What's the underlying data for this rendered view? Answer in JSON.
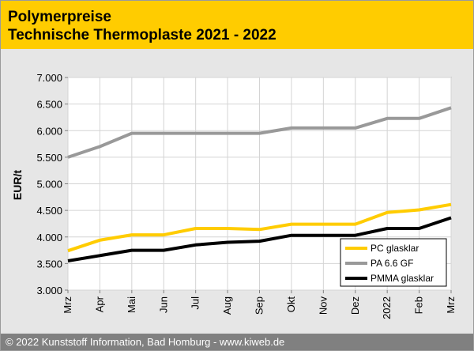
{
  "header": {
    "title": "Polymerpreise",
    "subtitle": "Technische Thermoplaste 2021 - 2022"
  },
  "footer": {
    "text": "© 2022 Kunststoff Information, Bad Homburg - www.kiweb.de"
  },
  "chart_data": {
    "type": "line",
    "ylabel": "EUR/t",
    "ylim": [
      3000,
      7000
    ],
    "yticks": [
      3000,
      3500,
      4000,
      4500,
      5000,
      5500,
      6000,
      6500,
      7000
    ],
    "ytick_labels": [
      "3.000",
      "3.500",
      "4.000",
      "4.500",
      "5.000",
      "5.500",
      "6.000",
      "6.500",
      "7.000"
    ],
    "categories": [
      "Mrz",
      "Apr",
      "Mai",
      "Jun",
      "Jul",
      "Aug",
      "Sep",
      "Okt",
      "Nov",
      "Dez",
      "2022",
      "Feb",
      "Mrz"
    ],
    "grid": true,
    "legend_position": "bottom-right",
    "series": [
      {
        "name": "PC glasklar",
        "color": "#ffcc00",
        "values": [
          3740,
          3940,
          4040,
          4040,
          4160,
          4160,
          4140,
          4240,
          4240,
          4240,
          4460,
          4510,
          4610
        ]
      },
      {
        "name": "PA 6.6 GF",
        "color": "#999999",
        "values": [
          5500,
          5700,
          5950,
          5950,
          5950,
          5950,
          5950,
          6050,
          6050,
          6050,
          6230,
          6230,
          6430
        ]
      },
      {
        "name": "PMMA glasklar",
        "color": "#000000",
        "values": [
          3550,
          3650,
          3750,
          3750,
          3850,
          3900,
          3920,
          4030,
          4030,
          4030,
          4160,
          4160,
          4360
        ]
      }
    ]
  }
}
